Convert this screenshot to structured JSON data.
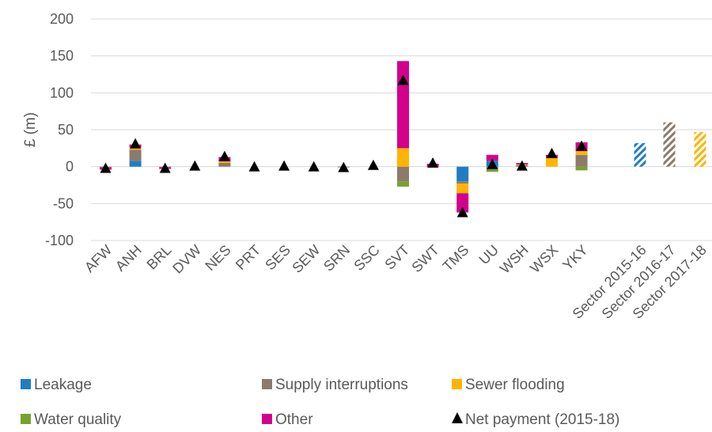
{
  "chart_data": {
    "type": "bar",
    "ylabel": "£ (m)",
    "ylim": [
      -100,
      200
    ],
    "yticks": [
      -100,
      -50,
      0,
      50,
      100,
      150,
      200
    ],
    "grid": true,
    "legend_position": "bottom",
    "colors": {
      "leakage": "#1f7dc4",
      "supply": "#8c7b6b",
      "sewer": "#ffb400",
      "water": "#78a22f",
      "other": "#d3008d",
      "net": "#000000"
    },
    "categories": [
      "AFW",
      "ANH",
      "BRL",
      "DVW",
      "NES",
      "PRT",
      "SES",
      "SEW",
      "SRN",
      "SSC",
      "SVT",
      "SWT",
      "TMS",
      "UU",
      "WSH",
      "WSX",
      "YKY"
    ],
    "series": [
      {
        "name": "Leakage",
        "key": "leakage",
        "values": [
          0,
          8,
          0,
          0,
          0,
          0,
          0,
          0,
          0,
          0,
          0,
          0,
          -20,
          8,
          0,
          0,
          0
        ]
      },
      {
        "name": "Supply interruptions",
        "key": "supply",
        "values": [
          -1,
          15,
          -1,
          0,
          5,
          0,
          0,
          0,
          -1,
          0,
          -20,
          0,
          -3,
          0,
          2,
          0,
          16
        ]
      },
      {
        "name": "Sewer flooding",
        "key": "sewer",
        "values": [
          0,
          3,
          0,
          0,
          2,
          0,
          0,
          0,
          0,
          0,
          25,
          0,
          -13,
          0,
          1,
          12,
          5
        ]
      },
      {
        "name": "Water quality",
        "key": "water",
        "values": [
          0,
          0,
          0,
          0,
          0,
          0,
          0,
          0,
          0,
          0,
          -7,
          0,
          0,
          -7,
          0,
          0,
          -5
        ]
      },
      {
        "name": "Other",
        "key": "other",
        "values": [
          -3,
          4,
          -2,
          0,
          6,
          0,
          0,
          0,
          0,
          0,
          118,
          4,
          -26,
          8,
          2,
          4,
          12
        ]
      }
    ],
    "net_payment": {
      "name": "Net payment (2015-18)",
      "values": [
        -3,
        30,
        -3,
        0,
        13,
        -1,
        0,
        -1,
        -2,
        1,
        116,
        4,
        -63,
        2,
        0,
        17,
        27
      ]
    },
    "sector": {
      "categories": [
        "Sector 2015-16",
        "Sector 2016-17",
        "Sector 2017-18"
      ],
      "values": [
        32,
        60,
        47
      ],
      "color_keys": [
        "leakage",
        "supply",
        "sewer"
      ]
    }
  }
}
